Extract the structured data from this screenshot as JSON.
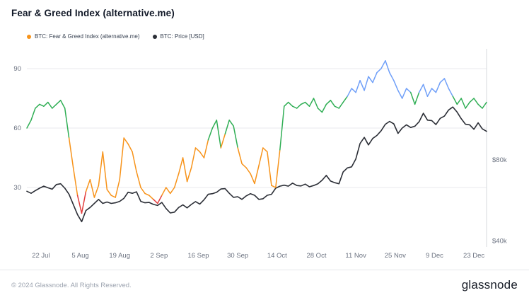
{
  "header": {
    "title": "Fear & Greed Index (alternative.me)"
  },
  "legend": {
    "items": [
      {
        "label": "BTC: Fear & Greed Index (alternative.me)",
        "color": "#f7931a"
      },
      {
        "label": "BTC: Price [USD]",
        "color": "#2b2e36"
      }
    ]
  },
  "footer": {
    "copyright": "© 2024 Glassnode. All Rights Reserved.",
    "brand": "glassnode"
  },
  "chart_data": {
    "type": "line",
    "title": "Fear & Greed Index (alternative.me)",
    "step_days": 1.5,
    "x_ticks": {
      "labels": [
        "22 Jul",
        "5 Aug",
        "19 Aug",
        "2 Sep",
        "16 Sep",
        "30 Sep",
        "14 Oct",
        "28 Oct",
        "11 Nov",
        "25 Nov",
        "9 Dec",
        "23 Dec"
      ],
      "days": [
        5,
        19,
        33,
        47,
        61,
        75,
        89,
        103,
        117,
        131,
        145,
        159
      ]
    },
    "y_left": {
      "ticks": [
        30,
        60,
        90
      ],
      "range": [
        0,
        100
      ]
    },
    "y_right": {
      "labels": [
        "$80k",
        "$40k"
      ],
      "values": [
        80,
        40
      ],
      "fg_at_40k": 3,
      "fg_at_80k": 44
    },
    "color_scale": [
      {
        "max": 25,
        "color": "#e23c3c",
        "label": "extreme-fear"
      },
      {
        "max": 55,
        "color": "#f7931a",
        "label": "fear"
      },
      {
        "max": 76,
        "color": "#2fae54",
        "label": "greed"
      },
      {
        "max": 101,
        "color": "#6f9ff8",
        "label": "extreme-greed"
      }
    ],
    "grid_color": "#e8eaee",
    "axis_text_color": "#6b7280",
    "series": [
      {
        "name": "BTC: Fear & Greed Index (alternative.me)",
        "color": "#f7931a",
        "values": [
          60,
          64,
          70,
          72,
          71,
          73,
          70,
          72,
          74,
          70,
          55,
          40,
          26,
          17,
          28,
          34,
          25,
          31,
          48,
          29,
          26,
          25,
          34,
          55,
          52,
          48,
          38,
          30,
          27,
          26,
          24,
          22,
          26,
          30,
          27,
          30,
          37,
          45,
          33,
          40,
          50,
          48,
          45,
          54,
          60,
          64,
          50,
          57,
          64,
          61,
          50,
          42,
          40,
          37,
          32,
          41,
          50,
          48,
          31,
          30,
          49,
          71,
          73,
          71,
          70,
          72,
          73,
          71,
          75,
          70,
          68,
          72,
          74,
          71,
          70,
          73,
          76,
          80,
          78,
          84,
          79,
          86,
          83,
          88,
          90,
          94,
          88,
          84,
          79,
          75,
          80,
          78,
          72,
          78,
          82,
          76,
          80,
          78,
          83,
          85,
          80,
          76,
          72,
          75,
          70,
          73,
          75,
          72,
          70,
          73
        ]
      },
      {
        "name": "BTC: Price [USD]",
        "color": "#2b2e36",
        "unit": "k USD",
        "values": [
          64.5,
          63.5,
          64.8,
          66,
          67,
          66.2,
          65.5,
          67.8,
          68.2,
          66,
          63,
          58,
          53,
          49.5,
          55,
          56.5,
          58.5,
          60.5,
          58.5,
          59.2,
          58.5,
          58.8,
          59.5,
          61,
          64,
          63.5,
          64.2,
          59.5,
          58.8,
          59,
          58,
          57.5,
          59,
          56,
          53.8,
          54.2,
          56.5,
          57.8,
          56.3,
          58,
          59.4,
          58.2,
          60.3,
          63,
          63.3,
          64,
          65.6,
          65.8,
          63.5,
          61.5,
          61.8,
          60.5,
          62.2,
          63.3,
          62.5,
          60.5,
          60.8,
          62.5,
          63,
          66,
          67,
          67.5,
          67,
          68.5,
          67.3,
          67.1,
          68,
          66.7,
          67.3,
          68.2,
          69.9,
          72.3,
          69.5,
          68.7,
          68.2,
          74,
          76,
          76.5,
          80.4,
          88,
          91,
          87.3,
          90.5,
          92,
          94.3,
          97.5,
          98.9,
          97.7,
          93,
          95.6,
          97.2,
          95.9,
          96.5,
          98.7,
          102.9,
          99.5,
          99.3,
          97.3,
          100.4,
          101.5,
          104.5,
          106,
          103.5,
          100.2,
          97.5,
          97.2,
          95,
          98.2,
          95.2,
          94
        ]
      }
    ]
  }
}
